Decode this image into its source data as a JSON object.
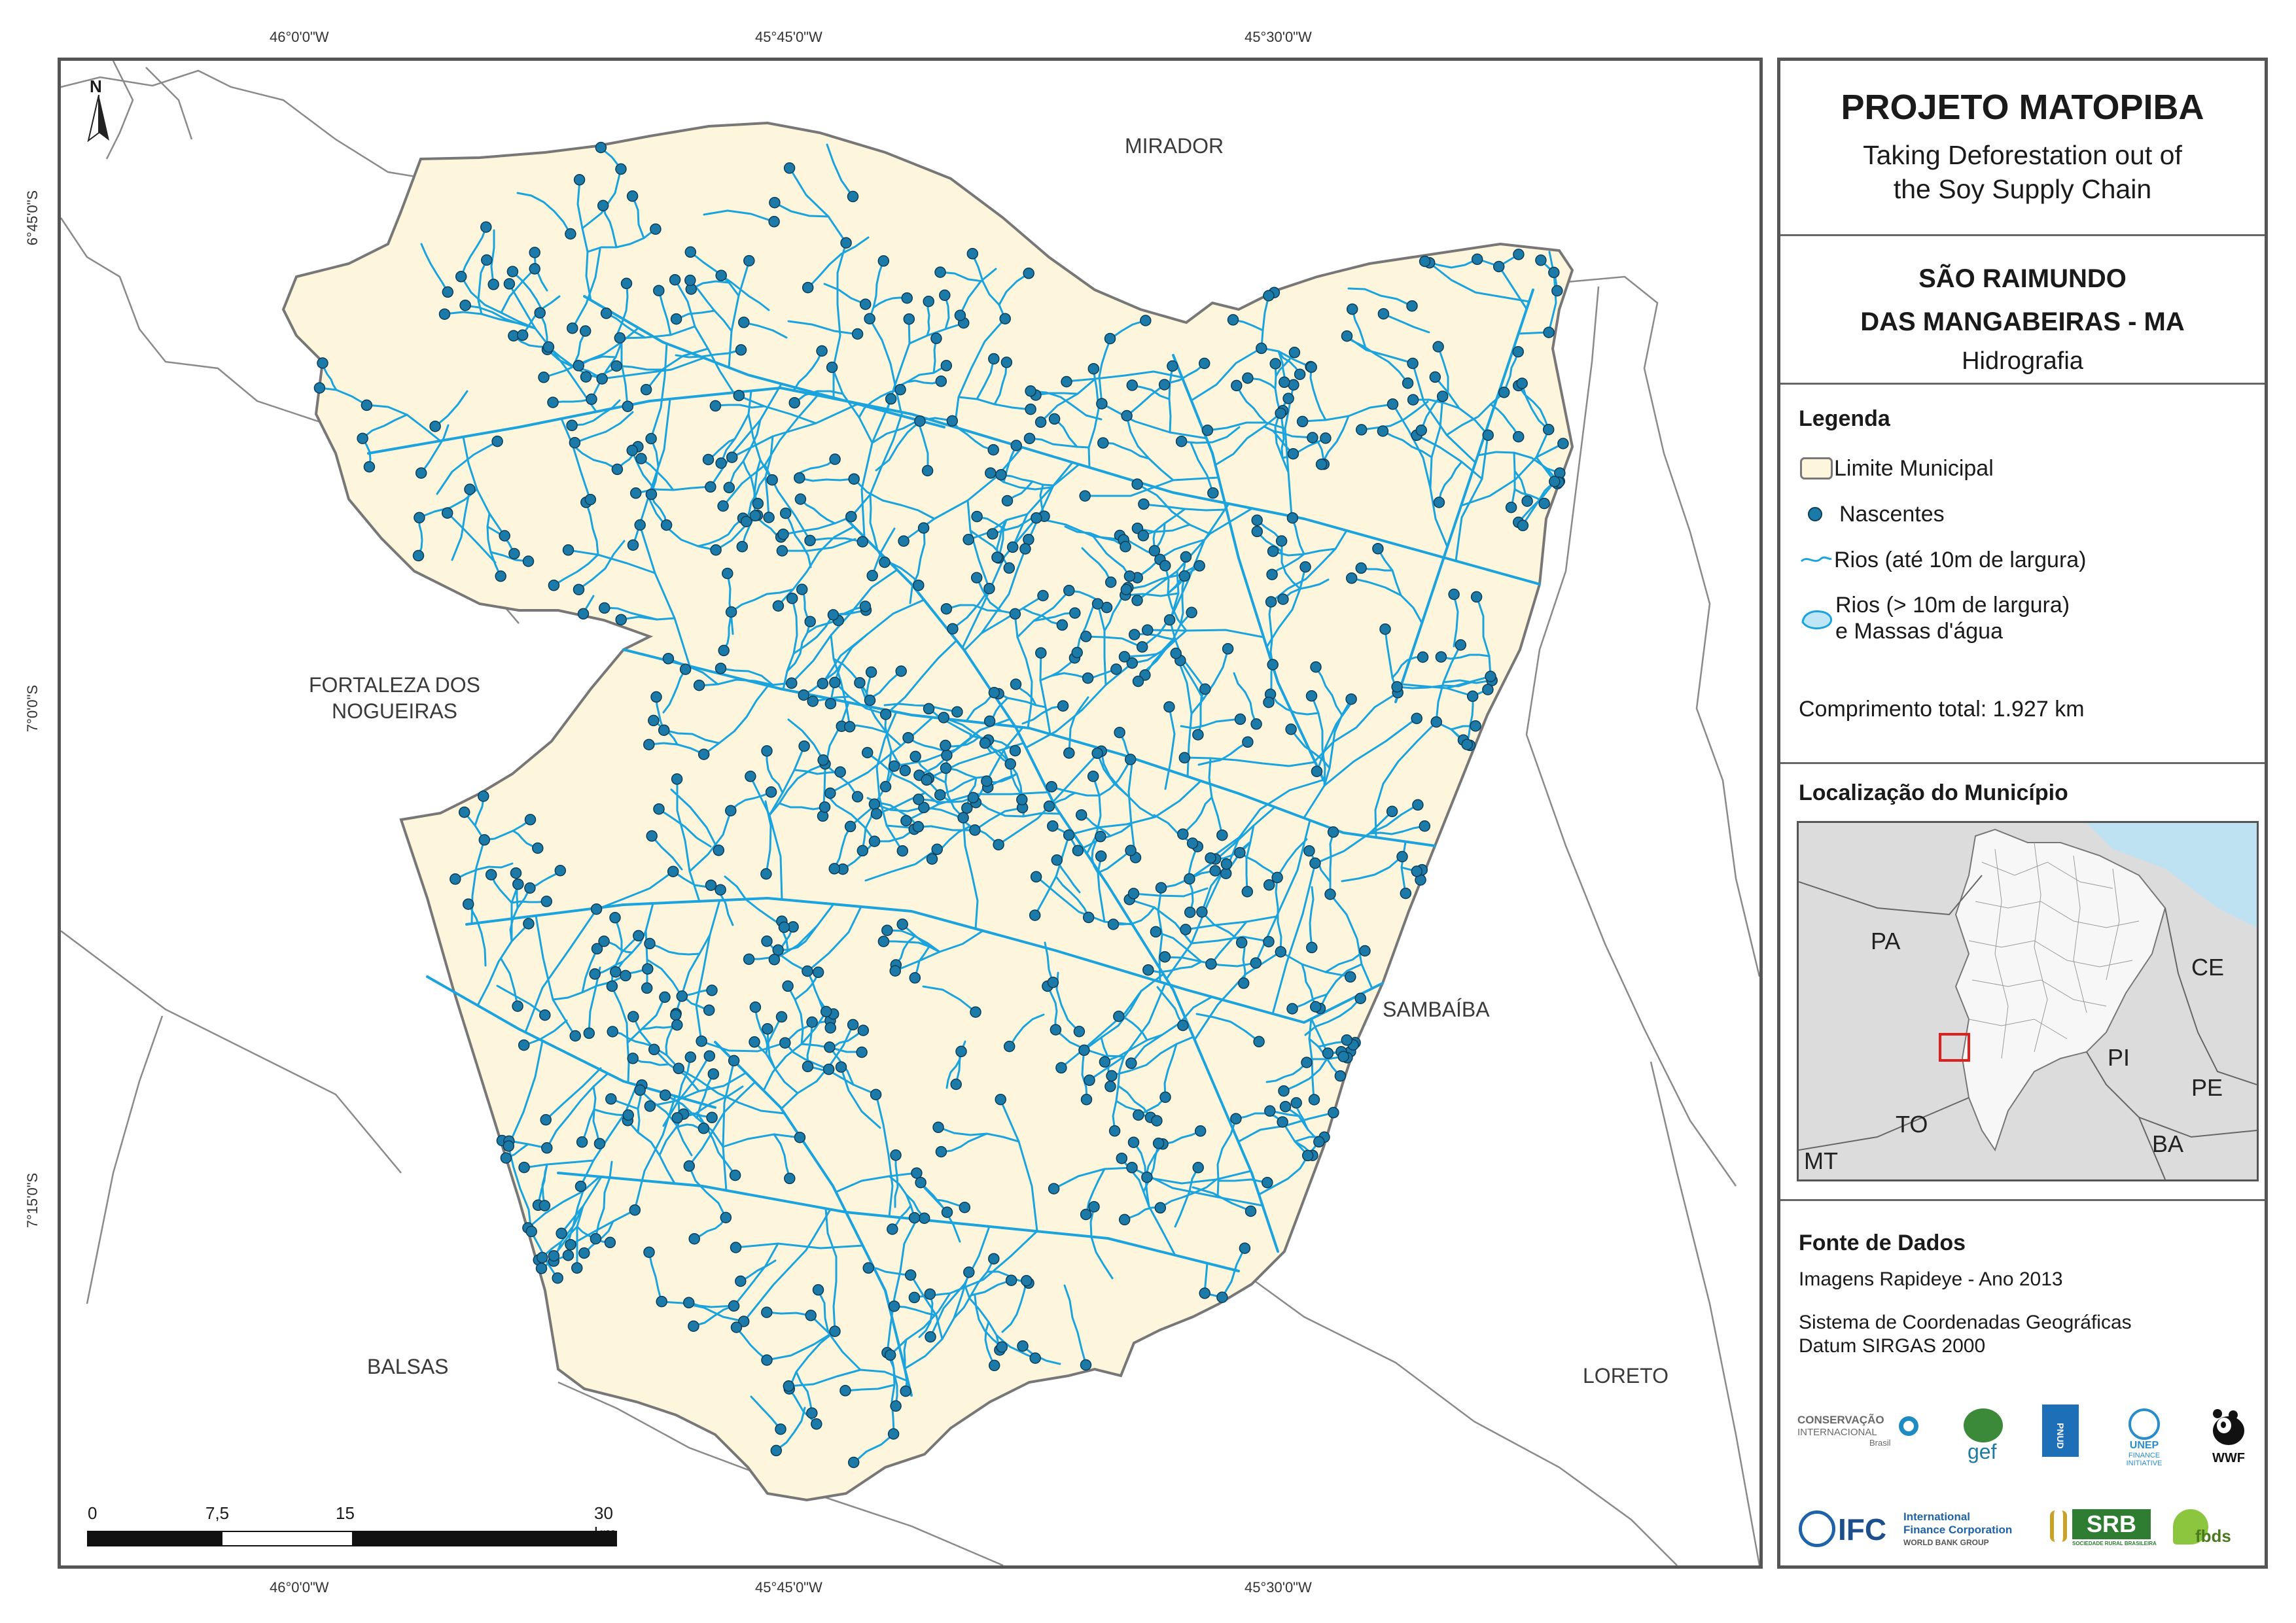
{
  "map": {
    "north_label": "N",
    "coordinates": {
      "top": [
        "46°0'0\"W",
        "45°45'0\"W",
        "45°30'0\"W"
      ],
      "bottom": [
        "46°0'0\"W",
        "45°45'0\"W",
        "45°30'0\"W"
      ],
      "left": [
        "6°45'0\"S",
        "7°0'0\"S",
        "7°15'0\"S"
      ]
    },
    "neighbors": {
      "mirador": "MIRADOR",
      "fortaleza_line1": "FORTALEZA DOS",
      "fortaleza_line2": "NOGUEIRAS",
      "sambaiba": "SAMBAÍBA",
      "balsas": "BALSAS",
      "loreto": "LORETO"
    },
    "scale_bar": {
      "labels": [
        "0",
        "7,5",
        "15",
        "30 km"
      ]
    },
    "colors": {
      "municipality_fill": "#fdf6dc",
      "municipality_border": "#777777",
      "rivers": "#1aa3dc",
      "springs": "#1b7aa8",
      "neighbor_borders": "#8a8a8a"
    }
  },
  "panel": {
    "title": "PROJETO MATOPIBA",
    "subtitle_line1": "Taking Deforestation out of",
    "subtitle_line2": "the Soy Supply Chain",
    "municipality_line1": "SÃO RAIMUNDO",
    "municipality_line2": "DAS MANGABEIRAS - MA",
    "theme": "Hidrografia",
    "legend": {
      "heading": "Legenda",
      "items": [
        {
          "label": "Limite Municipal",
          "icon": "municipal-boundary-icon"
        },
        {
          "label": "Nascentes",
          "icon": "spring-icon"
        },
        {
          "label": "Rios (até 10m de largura)",
          "icon": "river-line-icon"
        },
        {
          "label_line1": "Rios (> 10m de largura)",
          "label_line2": "e Massas d'água",
          "icon": "water-body-icon"
        }
      ],
      "total_length": "Comprimento total: 1.927 km"
    },
    "location": {
      "heading": "Localização do Município",
      "labels": [
        "PA",
        "CE",
        "PI",
        "PE",
        "TO",
        "BA",
        "MT"
      ],
      "highlight_color": "#e01e1e"
    },
    "sources": {
      "heading": "Fonte de Dados",
      "line1": "Imagens Rapideye - Ano 2013",
      "line2": "Sistema de Coordenadas Geográficas",
      "line3": "Datum SIRGAS 2000"
    },
    "logos": {
      "ci_line1": "CONSERVAÇÃO",
      "ci_line2": "INTERNACIONAL",
      "ci_line3": "Brasil",
      "gef": "gef",
      "pnud": "PNUD",
      "unep_line1": "UNEP",
      "unep_line2": "FINANCE",
      "unep_line3": "INITIATIVE",
      "wwf": "WWF",
      "ifc": "IFC",
      "ifc_line1": "International",
      "ifc_line2": "Finance Corporation",
      "ifc_line3": "WORLD BANK GROUP",
      "srb": "SRB",
      "srb_sub": "SOCIEDADE RURAL BRASILEIRA",
      "fbds": "fbds"
    }
  }
}
